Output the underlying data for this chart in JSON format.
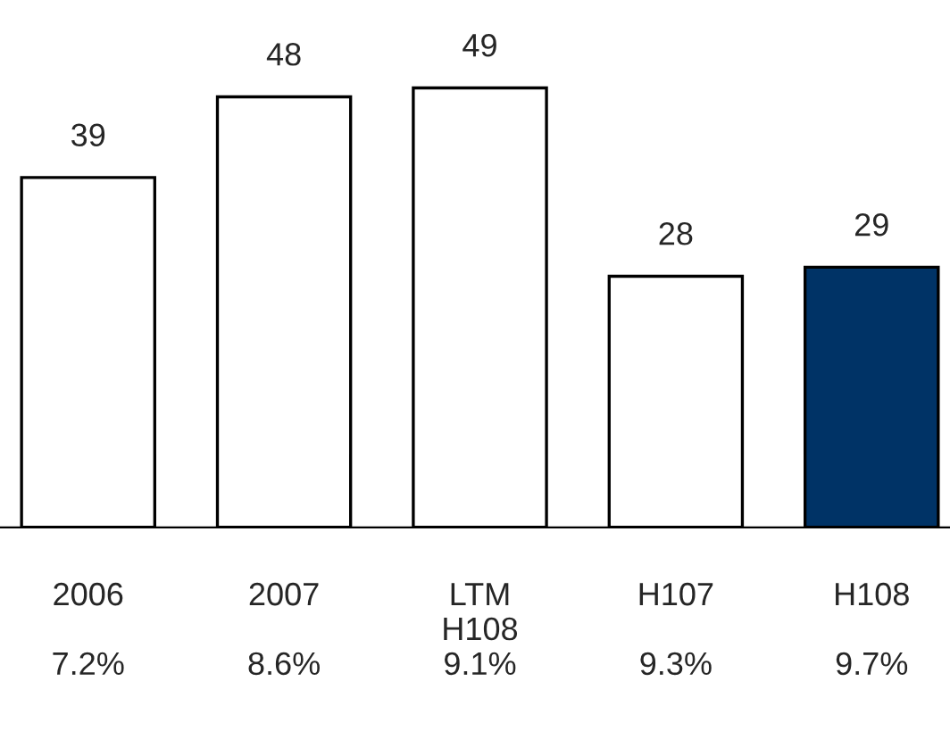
{
  "chart_data": {
    "type": "bar",
    "categories": [
      "2006",
      "2007",
      "LTM\nH108",
      "H107",
      "H108"
    ],
    "values": [
      39,
      48,
      49,
      28,
      29
    ],
    "colors": [
      "#ffffff",
      "#ffffff",
      "#ffffff",
      "#ffffff",
      "#003366"
    ],
    "data_labels": true,
    "grid": false,
    "annotations": [
      "7.2%",
      "8.6%",
      "9.1%",
      "9.3%",
      "9.7%"
    ]
  }
}
